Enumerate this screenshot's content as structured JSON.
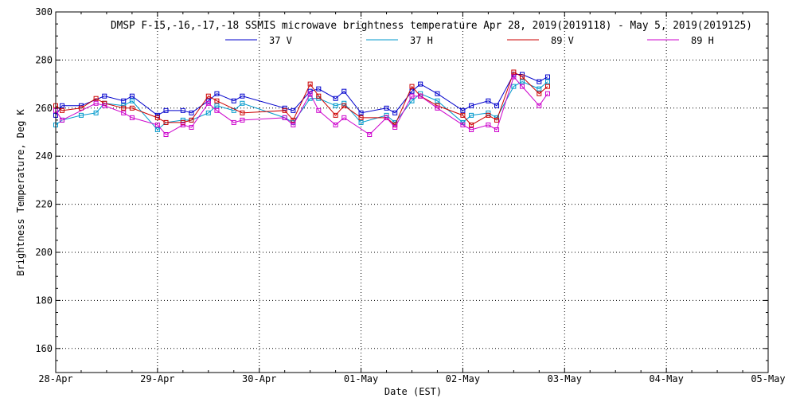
{
  "chart_data": {
    "type": "line",
    "title": "DMSP F-15,-16,-17,-18 SSMIS microwave brightness temperature Apr 28, 2019(2019118) - May  5, 2019(2019125)",
    "xlabel": "Date (EST)",
    "ylabel": "Brightness Temperature, Deg K",
    "xlim": [
      "2019-04-28",
      "2019-05-05"
    ],
    "ylim": [
      150,
      300
    ],
    "x_ticks": [
      "28-Apr",
      "29-Apr",
      "30-Apr",
      "01-May",
      "02-May",
      "03-May",
      "04-May",
      "05-May"
    ],
    "y_ticks": [
      "160",
      "180",
      "200",
      "220",
      "240",
      "260",
      "280",
      "300"
    ],
    "y_tick_values": [
      160,
      180,
      200,
      220,
      240,
      260,
      280,
      300
    ],
    "grid": true,
    "legend_position": "top",
    "series": [
      {
        "name": "37 V",
        "color": "#0000cc",
        "points": [
          [
            "2019-04-28 00:00",
            257
          ],
          [
            "2019-04-28 01:30",
            261
          ],
          [
            "2019-04-28 06:00",
            261
          ],
          [
            "2019-04-28 11:30",
            265
          ],
          [
            "2019-04-28 16:00",
            263
          ],
          [
            "2019-04-28 18:00",
            265
          ],
          [
            "2019-04-29 00:00",
            257
          ],
          [
            "2019-04-29 02:00",
            259
          ],
          [
            "2019-04-29 06:00",
            259
          ],
          [
            "2019-04-29 08:00",
            258
          ],
          [
            "2019-04-29 12:00",
            263
          ],
          [
            "2019-04-29 14:00",
            266
          ],
          [
            "2019-04-29 18:00",
            263
          ],
          [
            "2019-04-29 20:00",
            265
          ],
          [
            "2019-04-30 06:00",
            260
          ],
          [
            "2019-04-30 08:00",
            259
          ],
          [
            "2019-04-30 12:00",
            267
          ],
          [
            "2019-04-30 14:00",
            268
          ],
          [
            "2019-04-30 18:00",
            264
          ],
          [
            "2019-04-30 20:00",
            267
          ],
          [
            "2019-05-01 00:00",
            258
          ],
          [
            "2019-05-01 06:00",
            260
          ],
          [
            "2019-05-01 08:00",
            258
          ],
          [
            "2019-05-01 12:00",
            267
          ],
          [
            "2019-05-01 14:00",
            270
          ],
          [
            "2019-05-01 18:00",
            266
          ],
          [
            "2019-05-02 00:00",
            259
          ],
          [
            "2019-05-02 02:00",
            261
          ],
          [
            "2019-05-02 06:00",
            263
          ],
          [
            "2019-05-02 08:00",
            261
          ],
          [
            "2019-05-02 12:00",
            274
          ],
          [
            "2019-05-02 14:00",
            274
          ],
          [
            "2019-05-02 18:00",
            271
          ],
          [
            "2019-05-02 20:00",
            273
          ]
        ]
      },
      {
        "name": "37 H",
        "color": "#0099cc",
        "points": [
          [
            "2019-04-28 00:00",
            253
          ],
          [
            "2019-04-28 01:30",
            255
          ],
          [
            "2019-04-28 06:00",
            257
          ],
          [
            "2019-04-28 09:30",
            258
          ],
          [
            "2019-04-28 11:30",
            262
          ],
          [
            "2019-04-28 16:00",
            261
          ],
          [
            "2019-04-28 18:00",
            263
          ],
          [
            "2019-04-29 00:00",
            251
          ],
          [
            "2019-04-29 02:00",
            254
          ],
          [
            "2019-04-29 06:00",
            255
          ],
          [
            "2019-04-29 08:00",
            255
          ],
          [
            "2019-04-29 12:00",
            258
          ],
          [
            "2019-04-29 14:00",
            261
          ],
          [
            "2019-04-29 18:00",
            259
          ],
          [
            "2019-04-29 20:00",
            262
          ],
          [
            "2019-04-30 06:00",
            256
          ],
          [
            "2019-04-30 08:00",
            254
          ],
          [
            "2019-04-30 12:00",
            264
          ],
          [
            "2019-04-30 14:00",
            264
          ],
          [
            "2019-04-30 18:00",
            261
          ],
          [
            "2019-04-30 20:00",
            262
          ],
          [
            "2019-05-01 00:00",
            254
          ],
          [
            "2019-05-01 06:00",
            257
          ],
          [
            "2019-05-01 08:00",
            254
          ],
          [
            "2019-05-01 12:00",
            263
          ],
          [
            "2019-05-01 14:00",
            266
          ],
          [
            "2019-05-01 18:00",
            263
          ],
          [
            "2019-05-02 00:00",
            254
          ],
          [
            "2019-05-02 02:00",
            257
          ],
          [
            "2019-05-02 06:00",
            258
          ],
          [
            "2019-05-02 08:00",
            256
          ],
          [
            "2019-05-02 12:00",
            269
          ],
          [
            "2019-05-02 14:00",
            271
          ],
          [
            "2019-05-02 18:00",
            268
          ],
          [
            "2019-05-02 20:00",
            271
          ]
        ]
      },
      {
        "name": "89 V",
        "color": "#cc0000",
        "points": [
          [
            "2019-04-28 00:00",
            261
          ],
          [
            "2019-04-28 01:30",
            259
          ],
          [
            "2019-04-28 06:00",
            260
          ],
          [
            "2019-04-28 09:30",
            264
          ],
          [
            "2019-04-28 11:30",
            262
          ],
          [
            "2019-04-28 16:00",
            260
          ],
          [
            "2019-04-28 18:00",
            260
          ],
          [
            "2019-04-29 00:00",
            256
          ],
          [
            "2019-04-29 02:00",
            254
          ],
          [
            "2019-04-29 06:00",
            254
          ],
          [
            "2019-04-29 08:00",
            255
          ],
          [
            "2019-04-29 12:00",
            265
          ],
          [
            "2019-04-29 14:00",
            263
          ],
          [
            "2019-04-29 20:00",
            258
          ],
          [
            "2019-04-30 06:00",
            259
          ],
          [
            "2019-04-30 08:00",
            255
          ],
          [
            "2019-04-30 12:00",
            270
          ],
          [
            "2019-04-30 14:00",
            265
          ],
          [
            "2019-04-30 18:00",
            257
          ],
          [
            "2019-04-30 20:00",
            261
          ],
          [
            "2019-05-01 00:00",
            256
          ],
          [
            "2019-05-01 06:00",
            256
          ],
          [
            "2019-05-01 08:00",
            253
          ],
          [
            "2019-05-01 12:00",
            269
          ],
          [
            "2019-05-01 14:00",
            265
          ],
          [
            "2019-05-01 18:00",
            261
          ],
          [
            "2019-05-02 00:00",
            257
          ],
          [
            "2019-05-02 02:00",
            253
          ],
          [
            "2019-05-02 06:00",
            257
          ],
          [
            "2019-05-02 08:00",
            255
          ],
          [
            "2019-05-02 12:00",
            275
          ],
          [
            "2019-05-02 14:00",
            273
          ],
          [
            "2019-05-02 18:00",
            266
          ],
          [
            "2019-05-02 20:00",
            269
          ]
        ]
      },
      {
        "name": "89 H",
        "color": "#cc00cc",
        "points": [
          [
            "2019-04-28 00:00",
            259
          ],
          [
            "2019-04-28 01:30",
            255
          ],
          [
            "2019-04-28 09:30",
            262
          ],
          [
            "2019-04-28 11:30",
            261
          ],
          [
            "2019-04-28 16:00",
            258
          ],
          [
            "2019-04-28 18:00",
            256
          ],
          [
            "2019-04-29 00:00",
            253
          ],
          [
            "2019-04-29 02:00",
            249
          ],
          [
            "2019-04-29 06:00",
            253
          ],
          [
            "2019-04-29 08:00",
            252
          ],
          [
            "2019-04-29 12:00",
            262
          ],
          [
            "2019-04-29 14:00",
            259
          ],
          [
            "2019-04-29 18:00",
            254
          ],
          [
            "2019-04-29 20:00",
            255
          ],
          [
            "2019-04-30 06:00",
            256
          ],
          [
            "2019-04-30 08:00",
            253
          ],
          [
            "2019-04-30 12:00",
            266
          ],
          [
            "2019-04-30 14:00",
            259
          ],
          [
            "2019-04-30 18:00",
            253
          ],
          [
            "2019-04-30 20:00",
            256
          ],
          [
            "2019-05-01 02:00",
            249
          ],
          [
            "2019-05-01 06:00",
            256
          ],
          [
            "2019-05-01 08:00",
            252
          ],
          [
            "2019-05-01 12:00",
            265
          ],
          [
            "2019-05-01 14:00",
            265
          ],
          [
            "2019-05-01 18:00",
            260
          ],
          [
            "2019-05-02 00:00",
            253
          ],
          [
            "2019-05-02 02:00",
            251
          ],
          [
            "2019-05-02 06:00",
            253
          ],
          [
            "2019-05-02 08:00",
            251
          ],
          [
            "2019-05-02 12:00",
            273
          ],
          [
            "2019-05-02 14:00",
            269
          ],
          [
            "2019-05-02 18:00",
            261
          ],
          [
            "2019-05-02 20:00",
            266
          ]
        ]
      }
    ]
  }
}
